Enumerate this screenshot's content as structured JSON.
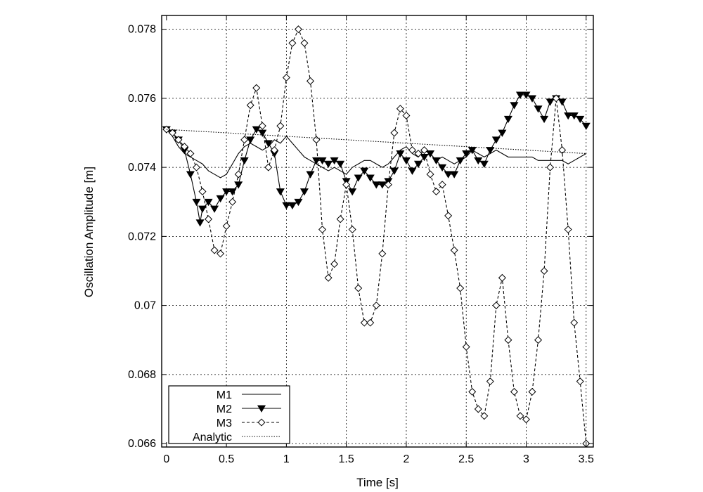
{
  "chart_data": {
    "type": "line",
    "title": "",
    "xlabel": "Time [s]",
    "ylabel": "Oscillation Amplitude [m]",
    "xlim": [
      -0.04,
      3.56
    ],
    "ylim": [
      0.0659,
      0.0784
    ],
    "xticks": [
      0,
      0.5,
      1,
      1.5,
      2,
      2.5,
      3,
      3.5
    ],
    "xtick_labels": [
      "0",
      "0.5",
      "1",
      "1.5",
      "2",
      "2.5",
      "3",
      "3.5"
    ],
    "yticks": [
      0.066,
      0.068,
      0.07,
      0.072,
      0.074,
      0.076,
      0.078
    ],
    "ytick_labels": [
      "0.066",
      "0.068",
      "0.07",
      "0.072",
      "0.074",
      "0.076",
      "0.078"
    ],
    "grid": true,
    "legend_position": "bottom-left",
    "series": [
      {
        "name": "M1",
        "style": "solid",
        "marker": "none",
        "color": "#000000",
        "x": [
          0,
          0.05,
          0.1,
          0.15,
          0.2,
          0.25,
          0.3,
          0.35,
          0.4,
          0.45,
          0.5,
          0.55,
          0.6,
          0.65,
          0.7,
          0.75,
          0.8,
          0.85,
          0.9,
          0.95,
          1.0,
          1.05,
          1.1,
          1.15,
          1.2,
          1.25,
          1.3,
          1.35,
          1.4,
          1.45,
          1.5,
          1.55,
          1.6,
          1.65,
          1.7,
          1.75,
          1.8,
          1.85,
          1.9,
          1.95,
          2.0,
          2.05,
          2.1,
          2.15,
          2.2,
          2.25,
          2.3,
          2.35,
          2.4,
          2.45,
          2.5,
          2.55,
          2.6,
          2.65,
          2.7,
          2.75,
          2.8,
          2.85,
          2.9,
          2.95,
          3.0,
          3.05,
          3.1,
          3.15,
          3.2,
          3.25,
          3.3,
          3.35,
          3.4,
          3.45,
          3.5
        ],
        "y": [
          0.0751,
          0.0749,
          0.0746,
          0.0744,
          0.0743,
          0.0742,
          0.0741,
          0.0739,
          0.0738,
          0.0737,
          0.0738,
          0.0741,
          0.0744,
          0.0746,
          0.0747,
          0.0746,
          0.0745,
          0.0746,
          0.0748,
          0.0747,
          0.0749,
          0.0747,
          0.0745,
          0.0743,
          0.0742,
          0.0741,
          0.074,
          0.0739,
          0.074,
          0.0739,
          0.0738,
          0.074,
          0.0741,
          0.0742,
          0.0742,
          0.0741,
          0.074,
          0.0741,
          0.0743,
          0.0745,
          0.0746,
          0.0744,
          0.0743,
          0.0745,
          0.0744,
          0.0742,
          0.0743,
          0.0742,
          0.0741,
          0.0742,
          0.0743,
          0.0745,
          0.0744,
          0.0743,
          0.0744,
          0.0745,
          0.0744,
          0.0743,
          0.0743,
          0.0743,
          0.0743,
          0.0743,
          0.0742,
          0.0742,
          0.0742,
          0.0742,
          0.0742,
          0.0741,
          0.0742,
          0.0743,
          0.0744
        ]
      },
      {
        "name": "M2",
        "style": "solid",
        "marker": "filled-triangle-down",
        "color": "#000000",
        "x": [
          0,
          0.05,
          0.1,
          0.15,
          0.2,
          0.25,
          0.28,
          0.3,
          0.35,
          0.4,
          0.45,
          0.5,
          0.55,
          0.6,
          0.65,
          0.7,
          0.75,
          0.8,
          0.85,
          0.9,
          0.95,
          1.0,
          1.05,
          1.1,
          1.15,
          1.2,
          1.25,
          1.3,
          1.35,
          1.4,
          1.45,
          1.5,
          1.55,
          1.6,
          1.65,
          1.7,
          1.75,
          1.8,
          1.85,
          1.9,
          1.95,
          2.0,
          2.05,
          2.1,
          2.15,
          2.2,
          2.25,
          2.3,
          2.35,
          2.4,
          2.45,
          2.5,
          2.55,
          2.6,
          2.65,
          2.7,
          2.75,
          2.8,
          2.85,
          2.9,
          2.95,
          3.0,
          3.05,
          3.1,
          3.15,
          3.2,
          3.25,
          3.3,
          3.35,
          3.4,
          3.45,
          3.5
        ],
        "y": [
          0.0751,
          0.075,
          0.0748,
          0.0745,
          0.0738,
          0.073,
          0.0724,
          0.0728,
          0.073,
          0.0728,
          0.0731,
          0.0733,
          0.0733,
          0.0735,
          0.0742,
          0.0748,
          0.0751,
          0.075,
          0.0747,
          0.0744,
          0.0733,
          0.0729,
          0.0729,
          0.073,
          0.0733,
          0.0738,
          0.0742,
          0.0742,
          0.0741,
          0.0742,
          0.0741,
          0.0736,
          0.0733,
          0.0737,
          0.0739,
          0.0737,
          0.0735,
          0.0735,
          0.0736,
          0.0739,
          0.0744,
          0.0742,
          0.0739,
          0.0741,
          0.0743,
          0.0744,
          0.0742,
          0.074,
          0.0738,
          0.0738,
          0.0742,
          0.0744,
          0.0745,
          0.0742,
          0.0741,
          0.0745,
          0.0748,
          0.075,
          0.0754,
          0.0758,
          0.0761,
          0.0761,
          0.076,
          0.0757,
          0.0754,
          0.0759,
          0.076,
          0.0759,
          0.0755,
          0.0755,
          0.0754,
          0.0752
        ]
      },
      {
        "name": "M3",
        "style": "dashed",
        "marker": "open-diamond",
        "color": "#000000",
        "x": [
          0,
          0.05,
          0.1,
          0.15,
          0.2,
          0.25,
          0.3,
          0.35,
          0.4,
          0.45,
          0.5,
          0.55,
          0.6,
          0.65,
          0.7,
          0.75,
          0.8,
          0.85,
          0.9,
          0.95,
          1.0,
          1.05,
          1.1,
          1.15,
          1.2,
          1.25,
          1.3,
          1.35,
          1.4,
          1.45,
          1.5,
          1.55,
          1.6,
          1.65,
          1.7,
          1.75,
          1.8,
          1.85,
          1.9,
          1.95,
          2.0,
          2.05,
          2.1,
          2.15,
          2.2,
          2.25,
          2.3,
          2.35,
          2.4,
          2.45,
          2.5,
          2.55,
          2.6,
          2.65,
          2.7,
          2.75,
          2.8,
          2.85,
          2.9,
          2.95,
          3.0,
          3.05,
          3.1,
          3.15,
          3.2,
          3.25,
          3.3,
          3.35,
          3.4,
          3.45,
          3.5
        ],
        "y": [
          0.0751,
          0.075,
          0.0748,
          0.0746,
          0.0744,
          0.074,
          0.0733,
          0.0725,
          0.0716,
          0.0715,
          0.0723,
          0.073,
          0.0738,
          0.0748,
          0.0758,
          0.0763,
          0.0752,
          0.074,
          0.0745,
          0.0752,
          0.0766,
          0.0776,
          0.078,
          0.0776,
          0.0765,
          0.0748,
          0.0722,
          0.0708,
          0.0712,
          0.0725,
          0.0735,
          0.0722,
          0.0705,
          0.0695,
          0.0695,
          0.07,
          0.0715,
          0.0735,
          0.075,
          0.0757,
          0.0755,
          0.0745,
          0.0744,
          0.0745,
          0.0738,
          0.0733,
          0.0735,
          0.0726,
          0.0716,
          0.0705,
          0.0688,
          0.0675,
          0.067,
          0.0668,
          0.0678,
          0.07,
          0.0708,
          0.069,
          0.0675,
          0.0668,
          0.0667,
          0.0675,
          0.069,
          0.071,
          0.074,
          0.076,
          0.0745,
          0.0722,
          0.0695,
          0.0678,
          0.066
        ]
      },
      {
        "name": "Analytic",
        "style": "dotted",
        "marker": "none",
        "color": "#000000",
        "x": [
          0,
          3.5
        ],
        "y": [
          0.0751,
          0.0744
        ]
      }
    ]
  }
}
